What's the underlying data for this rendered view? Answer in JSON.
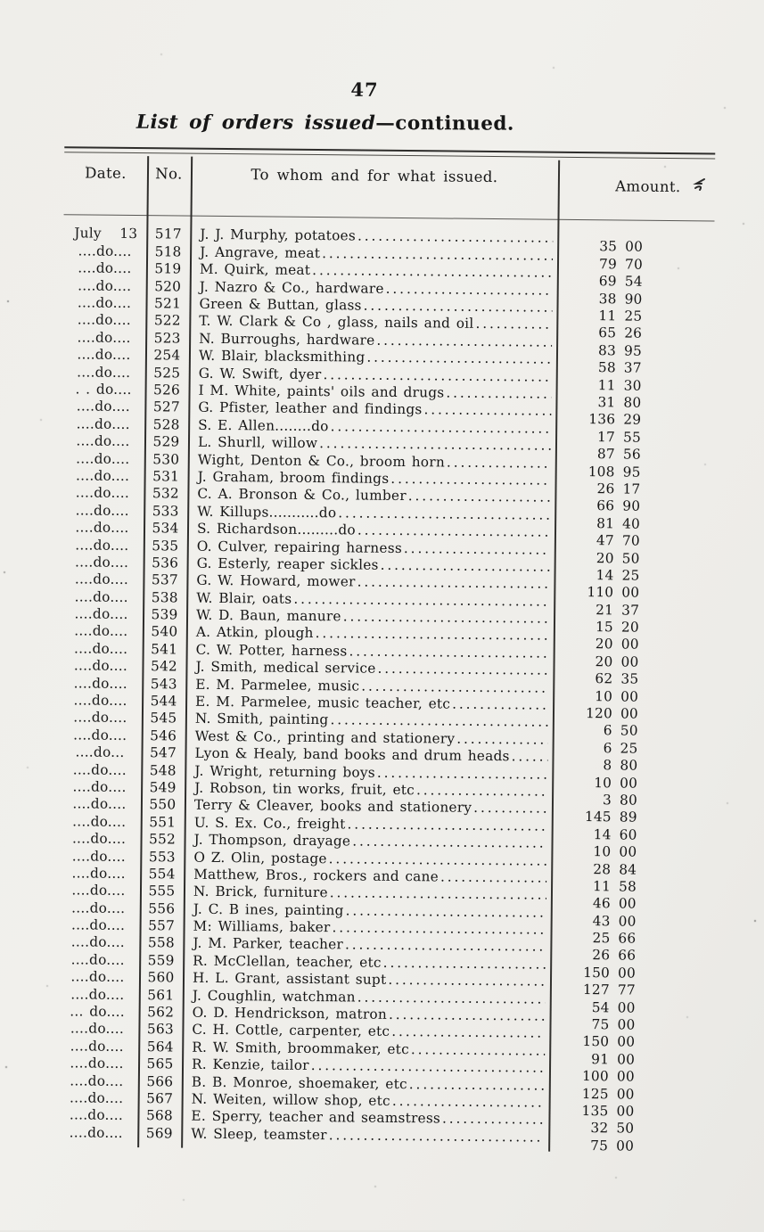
{
  "page": {
    "number": "47",
    "title_italic": "List of orders issued",
    "title_roman": "—continued."
  },
  "table": {
    "headers": {
      "date": "Date.",
      "no": "No.",
      "item": "To whom and for what issued.",
      "amount": "Amount."
    },
    "rows": [
      {
        "date": "July 13",
        "no": "517",
        "item": "J. J. Murphy, potatoes",
        "amount": "35 00"
      },
      {
        "date": "....do....",
        "no": "518",
        "item": "J. Angrave, meat",
        "amount": "79 70"
      },
      {
        "date": "....do....",
        "no": "519",
        "item": "M. Quirk, meat",
        "amount": "69 54"
      },
      {
        "date": "....do....",
        "no": "520",
        "item": "J. Nazro & Co., hardware",
        "amount": "38 90"
      },
      {
        "date": "....do....",
        "no": "521",
        "item": "Green & Buttan, glass",
        "amount": "11 25"
      },
      {
        "date": "....do....",
        "no": "522",
        "item": "T. W. Clark & Co , glass, nails and oil",
        "amount": "65 26"
      },
      {
        "date": "....do....",
        "no": "523",
        "item": "N. Burroughs, hardware",
        "amount": "83 95"
      },
      {
        "date": "....do....",
        "no": "254",
        "item": "W. Blair, blacksmithing",
        "amount": "58 37"
      },
      {
        "date": "....do....",
        "no": "525",
        "item": "G. W. Swift, dyer",
        "amount": "11 30"
      },
      {
        "date": ". . do....",
        "no": "526",
        "item": "I M. White, paints' oils and drugs",
        "amount": "31 80"
      },
      {
        "date": "....do....",
        "no": "527",
        "item": "G. Pfister, leather and findings",
        "amount": "136 29"
      },
      {
        "date": "....do....",
        "no": "528",
        "item": "S. E. Allen........do",
        "amount": "17 55"
      },
      {
        "date": "....do....",
        "no": "529",
        "item": "L. Shurll, willow",
        "amount": "87 56"
      },
      {
        "date": "....do....",
        "no": "530",
        "item": "Wight, Denton & Co., broom horn",
        "amount": "108 95"
      },
      {
        "date": "....do....",
        "no": "531",
        "item": "J. Graham, broom findings",
        "amount": "26 17"
      },
      {
        "date": "....do....",
        "no": "532",
        "item": "C. A. Bronson & Co., lumber",
        "amount": "66 90"
      },
      {
        "date": "....do....",
        "no": "533",
        "item": "W. Killups...........do",
        "amount": "81 40"
      },
      {
        "date": "....do....",
        "no": "534",
        "item": "S. Richardson.........do",
        "amount": "47 70"
      },
      {
        "date": "....do....",
        "no": "535",
        "item": "O. Culver, repairing harness",
        "amount": "20 50"
      },
      {
        "date": "....do....",
        "no": "536",
        "item": "G. Esterly, reaper sickles",
        "amount": "14 25"
      },
      {
        "date": "....do....",
        "no": "537",
        "item": "G. W. Howard, mower",
        "amount": "110 00"
      },
      {
        "date": "....do....",
        "no": "538",
        "item": "W. Blair, oats",
        "amount": "21 37"
      },
      {
        "date": "....do....",
        "no": "539",
        "item": "W. D. Baun, manure",
        "amount": "15 20"
      },
      {
        "date": "....do....",
        "no": "540",
        "item": "A. Atkin, plough",
        "amount": "20 00"
      },
      {
        "date": "....do....",
        "no": "541",
        "item": "C. W. Potter, harness",
        "amount": "20 00"
      },
      {
        "date": "....do....",
        "no": "542",
        "item": "J. Smith, medical service",
        "amount": "62 35"
      },
      {
        "date": "....do....",
        "no": "543",
        "item": "E. M. Parmelee, music",
        "amount": "10 00"
      },
      {
        "date": "....do....",
        "no": "544",
        "item": "E. M. Parmelee, music teacher, etc",
        "amount": "120 00"
      },
      {
        "date": "....do....",
        "no": "545",
        "item": "N. Smith, painting",
        "amount": "6 50"
      },
      {
        "date": "....do....",
        "no": "546",
        "item": "West & Co., printing and stationery",
        "amount": "6 25"
      },
      {
        "date": "....do...",
        "no": "547",
        "item": "Lyon & Healy, band books and drum heads",
        "amount": "8 80"
      },
      {
        "date": "....do....",
        "no": "548",
        "item": "J. Wright, returning boys",
        "amount": "10 00"
      },
      {
        "date": "....do....",
        "no": "549",
        "item": "J. Robson, tin works, fruit, etc",
        "amount": "3 80"
      },
      {
        "date": "....do....",
        "no": "550",
        "item": "Terry & Cleaver, books and stationery",
        "amount": "145 89"
      },
      {
        "date": "....do....",
        "no": "551",
        "item": "U. S. Ex. Co., freight",
        "amount": "14 60"
      },
      {
        "date": "....do....",
        "no": "552",
        "item": "J. Thompson, drayage",
        "amount": "10 00"
      },
      {
        "date": "....do....",
        "no": "553",
        "item": "O Z. Olin, postage",
        "amount": "28 84"
      },
      {
        "date": "....do....",
        "no": "554",
        "item": "Matthew, Bros., rockers and cane",
        "amount": "11 58"
      },
      {
        "date": "....do....",
        "no": "555",
        "item": "N. Brick, furniture",
        "amount": "46 00"
      },
      {
        "date": "....do....",
        "no": "556",
        "item": "J. C. B ines, painting",
        "amount": "43 00"
      },
      {
        "date": "....do....",
        "no": "557",
        "item": "M: Williams, baker",
        "amount": "25 66"
      },
      {
        "date": "....do....",
        "no": "558",
        "item": "J. M. Parker, teacher",
        "amount": "26 66"
      },
      {
        "date": "....do....",
        "no": "559",
        "item": "R. McClellan, teacher, etc",
        "amount": "150 00"
      },
      {
        "date": "....do....",
        "no": "560",
        "item": "H. L. Grant, assistant supt",
        "amount": "127 77"
      },
      {
        "date": "....do....",
        "no": "561",
        "item": "J. Coughlin, watchman",
        "amount": "54 00"
      },
      {
        "date": "... do....",
        "no": "562",
        "item": "O. D. Hendrickson, matron",
        "amount": "75 00"
      },
      {
        "date": "....do....",
        "no": "563",
        "item": "C. H. Cottle, carpenter, etc",
        "amount": "150 00"
      },
      {
        "date": "....do....",
        "no": "564",
        "item": "R. W. Smith, broommaker, etc",
        "amount": "91 00"
      },
      {
        "date": "....do....",
        "no": "565",
        "item": "R. Kenzie, tailor",
        "amount": "100 00"
      },
      {
        "date": "....do....",
        "no": "566",
        "item": "B. B. Monroe, shoemaker, etc",
        "amount": "125 00"
      },
      {
        "date": "....do....",
        "no": "567",
        "item": "N. Weiten, willow shop, etc",
        "amount": "135 00"
      },
      {
        "date": "....do....",
        "no": "568",
        "item": "E. Sperry, teacher and seamstress",
        "amount": "32 50"
      },
      {
        "date": "....do....",
        "no": "569",
        "item": "W. Sleep, teamster",
        "amount": "75 00"
      }
    ]
  },
  "icons": {
    "margin_mark": "pencil-squiggle"
  },
  "colors": {
    "paper": "#efeeea",
    "ink": "#161616",
    "rule": "#2e2d2b"
  }
}
